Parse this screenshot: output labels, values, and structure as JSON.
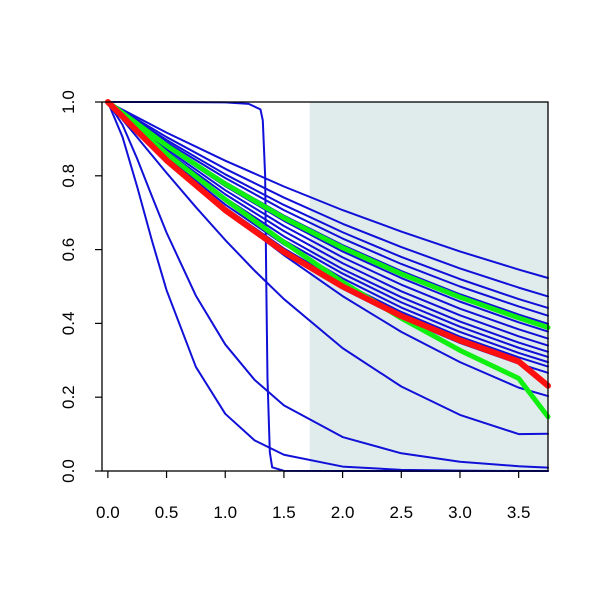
{
  "colors": {
    "blue": "#1010d8",
    "red": "#ff1010",
    "green": "#10f010",
    "shade": "#e0ecec",
    "background": "#ffffff",
    "axis": "#000000"
  },
  "chart_data": {
    "type": "line",
    "title": "",
    "xlabel": "",
    "ylabel": "",
    "xlim": [
      -0.05,
      3.75
    ],
    "ylim": [
      0.0,
      1.0
    ],
    "x_ticks": [
      "0.0",
      "0.5",
      "1.0",
      "1.5",
      "2.0",
      "2.5",
      "3.0",
      "3.5"
    ],
    "y_ticks": [
      "0.0",
      "0.2",
      "0.4",
      "0.6",
      "0.8",
      "1.0"
    ],
    "grid": false,
    "legend": "none",
    "shaded_region": {
      "x_from": 1.72,
      "x_to": 3.75,
      "color": "#e0ecec"
    },
    "series": [
      {
        "color": "blue",
        "x": [
          0,
          0.5,
          1,
          1.5,
          2,
          2.5,
          3,
          3.5,
          3.75
        ],
        "y": [
          1,
          0.917,
          0.841,
          0.771,
          0.707,
          0.649,
          0.595,
          0.546,
          0.523
        ]
      },
      {
        "color": "blue",
        "x": [
          0,
          0.5,
          1,
          1.5,
          2,
          2.5,
          3,
          3.5,
          3.75
        ],
        "y": [
          1,
          0.905,
          0.819,
          0.741,
          0.67,
          0.607,
          0.549,
          0.497,
          0.473
        ]
      },
      {
        "color": "blue",
        "x": [
          0,
          0.5,
          1,
          1.5,
          2,
          2.5,
          3,
          3.5,
          3.75
        ],
        "y": [
          1,
          0.897,
          0.804,
          0.721,
          0.647,
          0.58,
          0.52,
          0.466,
          0.442
        ]
      },
      {
        "color": "blue",
        "x": [
          0,
          0.5,
          1,
          1.5,
          2,
          2.5,
          3,
          3.5,
          3.75
        ],
        "y": [
          1,
          0.891,
          0.794,
          0.707,
          0.63,
          0.561,
          0.5,
          0.446,
          0.421
        ]
      },
      {
        "color": "blue",
        "x": [
          0,
          0.5,
          1,
          1.5,
          2,
          2.5,
          3,
          3.5,
          3.75
        ],
        "y": [
          1,
          0.884,
          0.783,
          0.692,
          0.612,
          0.542,
          0.479,
          0.424,
          0.399
        ]
      },
      {
        "color": "blue",
        "x": [
          0,
          0.5,
          1,
          1.5,
          2,
          2.5,
          3,
          3.5,
          3.75
        ],
        "y": [
          1,
          0.878,
          0.772,
          0.678,
          0.595,
          0.523,
          0.459,
          0.403,
          0.378
        ]
      },
      {
        "color": "blue",
        "x": [
          0,
          0.5,
          1,
          1.5,
          2,
          2.5,
          3,
          3.5,
          3.75
        ],
        "y": [
          1,
          0.872,
          0.761,
          0.664,
          0.579,
          0.505,
          0.44,
          0.384,
          0.359
        ]
      },
      {
        "color": "blue",
        "x": [
          0,
          0.5,
          1,
          1.5,
          2,
          2.5,
          3,
          3.5,
          3.75
        ],
        "y": [
          1,
          0.866,
          0.75,
          0.65,
          0.563,
          0.487,
          0.422,
          0.365,
          0.34
        ]
      },
      {
        "color": "blue",
        "x": [
          0,
          0.5,
          1,
          1.5,
          2,
          2.5,
          3,
          3.5,
          3.75
        ],
        "y": [
          1,
          0.86,
          0.74,
          0.636,
          0.547,
          0.471,
          0.405,
          0.348,
          0.323
        ]
      },
      {
        "color": "blue",
        "x": [
          0,
          0.5,
          1,
          1.5,
          2,
          2.5,
          3,
          3.5,
          3.75
        ],
        "y": [
          1,
          0.855,
          0.731,
          0.625,
          0.535,
          0.457,
          0.391,
          0.334,
          0.309
        ]
      },
      {
        "color": "blue",
        "x": [
          0,
          0.5,
          1,
          1.5,
          2,
          2.5,
          3,
          3.5,
          3.75
        ],
        "y": [
          1,
          0.85,
          0.722,
          0.614,
          0.522,
          0.443,
          0.377,
          0.32,
          0.295
        ]
      },
      {
        "color": "blue",
        "x": [
          0,
          0.5,
          1,
          1.5,
          2,
          2.5,
          3,
          3.5,
          3.75
        ],
        "y": [
          1,
          0.845,
          0.714,
          0.603,
          0.51,
          0.431,
          0.364,
          0.308,
          0.283
        ]
      },
      {
        "color": "blue",
        "x": [
          0,
          0.5,
          1,
          1.5,
          2,
          2.5,
          3,
          3.5,
          3.75
        ],
        "y": [
          1,
          0.838,
          0.703,
          0.589,
          0.494,
          0.414,
          0.347,
          0.291,
          0.266
        ]
      },
      {
        "color": "blue",
        "x": [
          0,
          0.25,
          0.5,
          0.75,
          1,
          1.25,
          1.5,
          2,
          2.5,
          3,
          3.5,
          3.75
        ],
        "y": [
          1,
          0.925,
          0.852,
          0.781,
          0.712,
          0.646,
          0.585,
          0.474,
          0.377,
          0.295,
          0.226,
          0.203
        ]
      },
      {
        "color": "blue",
        "x": [
          0,
          0.25,
          0.5,
          0.75,
          1,
          1.25,
          1.5,
          2,
          2.5,
          3,
          3.5,
          3.75
        ],
        "y": [
          1,
          0.904,
          0.808,
          0.715,
          0.626,
          0.543,
          0.466,
          0.333,
          0.229,
          0.152,
          0.1,
          0.101
        ]
      },
      {
        "color": "blue",
        "x": [
          0,
          0.125,
          0.25,
          0.375,
          0.5,
          0.75,
          1,
          1.25,
          1.5,
          2,
          2.5,
          3,
          3.5,
          3.75
        ],
        "y": [
          1,
          0.938,
          0.846,
          0.745,
          0.646,
          0.475,
          0.343,
          0.247,
          0.178,
          0.092,
          0.048,
          0.025,
          0.013,
          0.009
        ]
      },
      {
        "color": "blue",
        "x": [
          0,
          0.125,
          0.25,
          0.375,
          0.5,
          0.75,
          1,
          1.25,
          1.5,
          2,
          2.5,
          3,
          3.5,
          3.75
        ],
        "y": [
          1,
          0.905,
          0.77,
          0.625,
          0.49,
          0.282,
          0.155,
          0.083,
          0.044,
          0.012,
          0.003,
          0.001,
          0.0,
          0.0
        ]
      },
      {
        "color": "blue",
        "x": [
          0,
          0.5,
          1,
          1.2,
          1.3,
          1.32,
          1.34,
          1.35,
          1.36,
          1.38,
          1.4,
          1.5,
          2,
          2.5,
          3,
          3.5,
          3.75
        ],
        "y": [
          1,
          1,
          0.999,
          0.995,
          0.98,
          0.95,
          0.8,
          0.5,
          0.25,
          0.05,
          0.01,
          0.0005,
          0,
          0,
          0,
          0,
          0
        ]
      },
      {
        "color": "green",
        "x": [
          0,
          0.5,
          1,
          1.5,
          2,
          2.5,
          3,
          3.5,
          3.75
        ],
        "y": [
          1,
          0.882,
          0.778,
          0.686,
          0.605,
          0.534,
          0.471,
          0.415,
          0.389
        ]
      },
      {
        "color": "green",
        "x": [
          0,
          0.5,
          1,
          1.5,
          2,
          2.5,
          3,
          3.5,
          3.75
        ],
        "y": [
          1,
          0.86,
          0.736,
          0.62,
          0.512,
          0.414,
          0.327,
          0.251,
          0.147
        ]
      },
      {
        "color": "red",
        "x": [
          0,
          0.5,
          1,
          1.5,
          2,
          2.5,
          3,
          3.5,
          3.75
        ],
        "y": [
          1,
          0.842,
          0.707,
          0.594,
          0.5,
          0.42,
          0.354,
          0.297,
          0.231
        ]
      }
    ]
  }
}
